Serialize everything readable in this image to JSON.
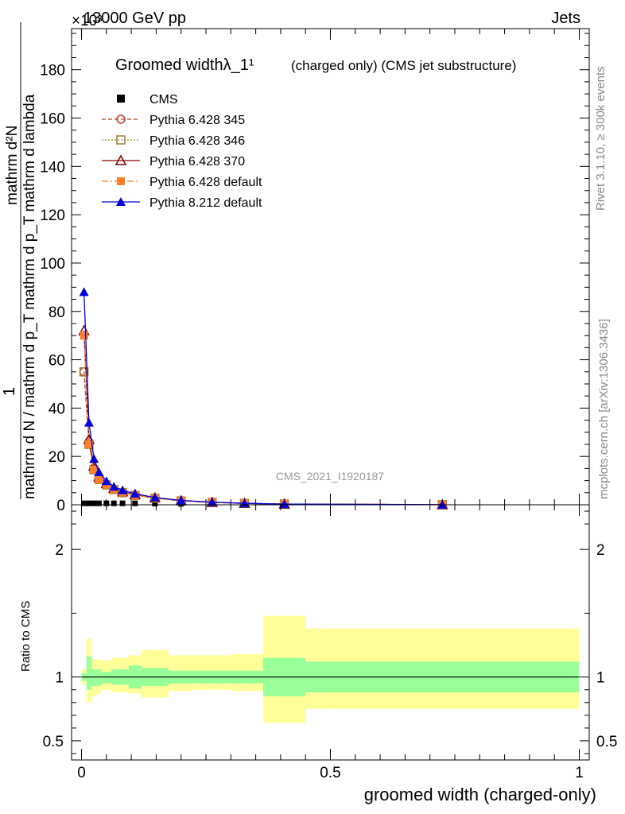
{
  "header": {
    "energy": "13000 GeV pp",
    "exponent": "×10³",
    "category": "Jets"
  },
  "side_labels": {
    "rivet": "Rivet 3.1.10, ≥ 300k events",
    "mcplots": "mcplots.cern.ch [arXiv:1306.3436]"
  },
  "watermark": "CMS_2021_I1920187",
  "colors": {
    "cms": "#000000",
    "p345": "#c0392b",
    "p346": "#a08030",
    "p370": "#8b0000",
    "p6def": "#ff7f2a",
    "p8def": "#0000dd",
    "band_inner": "#99ff99",
    "band_outer": "#ffff99"
  },
  "chart_data": [
    {
      "type": "line",
      "title": "Groomed widthλ_1¹",
      "subtitle": "(charged only) (CMS jet substructure)",
      "ylabel_top": "1",
      "ylabel_bottom": "mathrm d N / mathrm d p_T mathrm d p_T mathrm d lambda",
      "ylabel_mid": "mathrm d²N",
      "ylim": [
        0,
        197
      ],
      "yticks": [
        0,
        20,
        40,
        60,
        80,
        100,
        120,
        140,
        160,
        180
      ],
      "ytick_labels": [
        "0",
        "20",
        "40",
        "60",
        "80",
        "100",
        "120",
        "140",
        "160",
        "180"
      ],
      "x": [
        0.005,
        0.015,
        0.025,
        0.035,
        0.05,
        0.065,
        0.0825,
        0.1075,
        0.1475,
        0.2,
        0.2625,
        0.3275,
        0.4075,
        0.725
      ],
      "series": [
        {
          "name": "CMS",
          "values": [
            0.6,
            0.6,
            0.6,
            0.6,
            0.6,
            0.6,
            0.6,
            0.6,
            0.5,
            0.4,
            0.3,
            0.2,
            0.1,
            0.05
          ]
        },
        {
          "name": "Pythia 6.428 345",
          "values": [
            55,
            26,
            15,
            11,
            8.5,
            6.5,
            5.2,
            4.0,
            2.8,
            1.6,
            1.0,
            0.6,
            0.3,
            0.05
          ]
        },
        {
          "name": "Pythia 6.428 346",
          "values": [
            55,
            25,
            14.5,
            10.5,
            8.2,
            6.3,
            5.0,
            3.9,
            2.7,
            1.6,
            1.0,
            0.6,
            0.3,
            0.05
          ]
        },
        {
          "name": "Pythia 6.428 370",
          "values": [
            72,
            27,
            16,
            11.5,
            8.8,
            6.8,
            5.4,
            4.2,
            2.9,
            1.7,
            1.0,
            0.6,
            0.3,
            0.05
          ]
        },
        {
          "name": "Pythia 6.428 default",
          "values": [
            70,
            25,
            14.5,
            10.5,
            8.3,
            6.4,
            5.1,
            4.0,
            2.8,
            1.6,
            1.0,
            0.6,
            0.3,
            0.05
          ]
        },
        {
          "name": "Pythia 8.212 default",
          "values": [
            88,
            34,
            19,
            13.5,
            9.8,
            7.5,
            6.0,
            4.6,
            3.0,
            1.8,
            1.1,
            0.6,
            0.3,
            0.05
          ]
        }
      ]
    },
    {
      "type": "area",
      "ylabel": "Ratio to CMS",
      "xlabel": "groomed width (charged-only)",
      "xlim": [
        -0.02,
        1.02
      ],
      "ylim": [
        0.35,
        2.35
      ],
      "xticks": [
        0,
        0.5,
        1
      ],
      "xtick_labels": [
        "0",
        "0.5",
        "1"
      ],
      "yticks": [
        0.5,
        1,
        2
      ],
      "ytick_labels": [
        "0.5",
        "1",
        "2"
      ],
      "bins": [
        0,
        0.01,
        0.02,
        0.03,
        0.04,
        0.06,
        0.07,
        0.095,
        0.12,
        0.175,
        0.225,
        0.3,
        0.365,
        0.45,
        1.0
      ],
      "band_inner_low": [
        0.97,
        0.9,
        0.93,
        0.93,
        0.95,
        0.94,
        0.94,
        0.91,
        0.93,
        0.95,
        0.95,
        0.95,
        0.85,
        0.88
      ],
      "band_inner_high": [
        1.03,
        1.16,
        1.06,
        1.06,
        1.04,
        1.06,
        1.06,
        1.09,
        1.07,
        1.05,
        1.05,
        1.05,
        1.15,
        1.12
      ],
      "band_outer_low": [
        0.94,
        0.8,
        0.85,
        0.87,
        0.9,
        0.88,
        0.88,
        0.87,
        0.84,
        0.89,
        0.9,
        0.89,
        0.64,
        0.75
      ],
      "band_outer_high": [
        1.06,
        1.3,
        1.14,
        1.14,
        1.13,
        1.15,
        1.15,
        1.17,
        1.21,
        1.17,
        1.17,
        1.18,
        1.48,
        1.38
      ],
      "reference": 1
    }
  ]
}
